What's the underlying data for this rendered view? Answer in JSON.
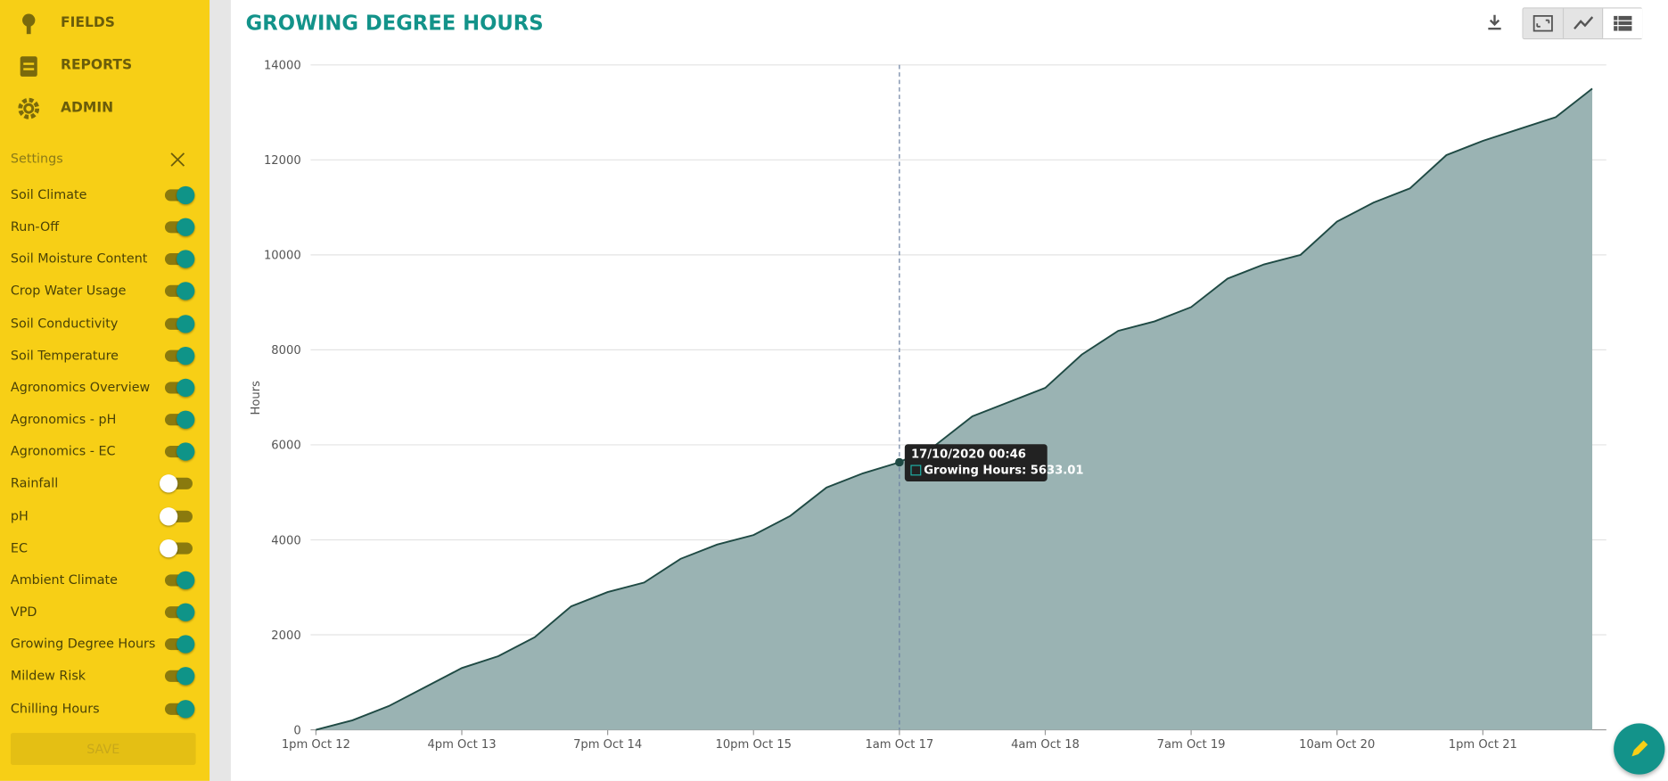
{
  "nav": [
    "FIELDS",
    "REPORTS",
    "ADMIN"
  ],
  "settings": {
    "title": "Settings",
    "items": [
      {
        "label": "Soil Climate",
        "on": true
      },
      {
        "label": "Run-Off",
        "on": true
      },
      {
        "label": "Soil Moisture Content",
        "on": true
      },
      {
        "label": "Crop Water Usage",
        "on": true
      },
      {
        "label": "Soil Conductivity",
        "on": true
      },
      {
        "label": "Soil Temperature",
        "on": true
      },
      {
        "label": "Agronomics Overview",
        "on": true
      },
      {
        "label": "Agronomics - pH",
        "on": true
      },
      {
        "label": "Agronomics - EC",
        "on": true
      },
      {
        "label": "Rainfall",
        "on": false
      },
      {
        "label": "pH",
        "on": false
      },
      {
        "label": "EC",
        "on": false
      },
      {
        "label": "Ambient Climate",
        "on": true
      },
      {
        "label": "VPD",
        "on": true
      },
      {
        "label": "Growing Degree Hours",
        "on": true
      },
      {
        "label": "Mildew Risk",
        "on": true
      },
      {
        "label": "Chilling Hours",
        "on": true
      }
    ],
    "save": "SAVE"
  },
  "chart_data": {
    "type": "area",
    "title": "GROWING DEGREE HOURS",
    "y_label": "Hours",
    "categories": [
      "1pm Oct 12",
      null,
      null,
      null,
      "4pm Oct 13",
      null,
      null,
      null,
      "7pm Oct 14",
      null,
      null,
      null,
      "10pm Oct 15",
      null,
      null,
      null,
      "1am Oct 17",
      null,
      null,
      null,
      "4am Oct 18",
      null,
      null,
      null,
      "7am Oct 19",
      null,
      null,
      null,
      "10am Oct 20",
      null,
      null,
      null,
      "1pm Oct 21",
      null,
      null,
      null
    ],
    "series": [
      {
        "name": "Growing Hours",
        "color": "#9ab3b3",
        "line_color": "#1f4a44",
        "values": [
          0,
          200,
          500,
          900,
          1300,
          1550,
          1950,
          2600,
          2900,
          3100,
          3600,
          3900,
          4100,
          4500,
          5100,
          5400,
          5633.01,
          6000,
          6600,
          6900,
          7200,
          7900,
          8400,
          8600,
          8900,
          9500,
          9800,
          10000,
          10700,
          11100,
          11400,
          12100,
          12400,
          12650,
          12900,
          13500
        ]
      }
    ],
    "ylim": [
      0,
      14000
    ],
    "yticks": [
      0,
      2000,
      4000,
      6000,
      8000,
      10000,
      12000,
      14000
    ],
    "grid": true,
    "tooltip": {
      "title": "17/10/2020 00:46",
      "text": "Growing Hours: 5633.01",
      "value": 5633.01
    }
  }
}
